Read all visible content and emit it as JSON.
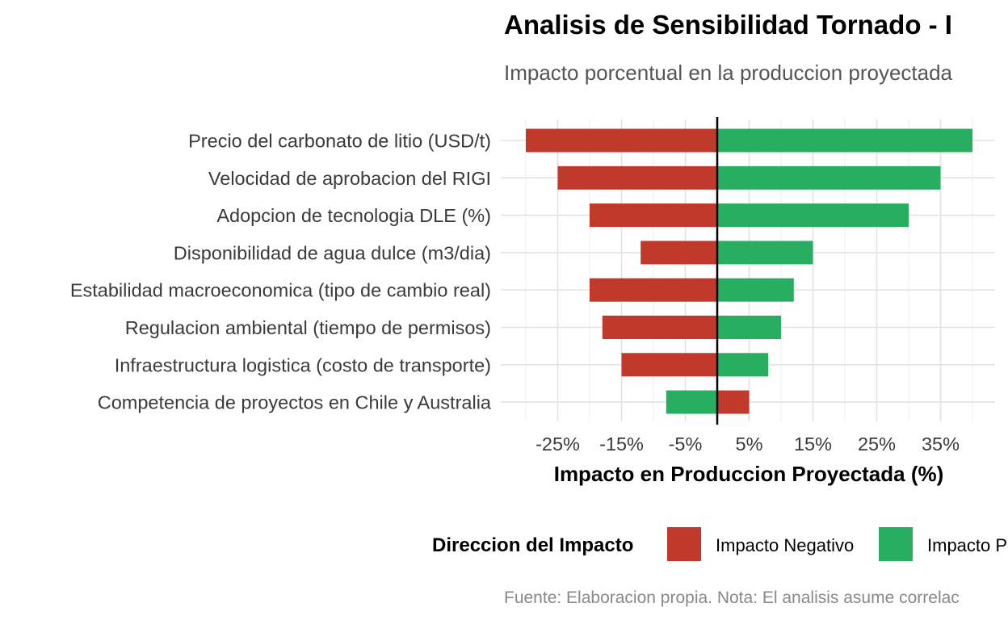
{
  "chart_data": {
    "type": "bar",
    "orientation": "horizontal",
    "variant": "tornado",
    "title": "Analisis de Sensibilidad Tornado - I",
    "subtitle": "Impacto porcentual en la produccion proyectada",
    "xlabel": "Impacto en Produccion Proyectada (%)",
    "ylabel": "",
    "caption": "Fuente: Elaboracion propia. Nota: El analisis asume correlac",
    "xlim": [
      -31,
      43
    ],
    "x_ticks": [
      -25,
      -15,
      -5,
      5,
      15,
      25,
      35
    ],
    "x_tick_labels": [
      "-25%",
      "-15%",
      "-5%",
      "5%",
      "15%",
      "25%",
      "35%"
    ],
    "grid": true,
    "legend": {
      "title": "Direccion del Impacto",
      "position": "bottom",
      "entries": [
        {
          "label": "Impacto Negativo",
          "color": "#c0392b"
        },
        {
          "label": "Impacto P",
          "color": "#27ae60"
        }
      ]
    },
    "categories": [
      "Precio del carbonato de litio (USD/t)",
      "Velocidad de aprobacion del RIGI",
      "Adopcion de tecnologia DLE (%)",
      "Disponibilidad de agua dulce (m3/dia)",
      "Estabilidad macroeconomica (tipo de cambio real)",
      "Regulacion ambiental (tiempo de permisos)",
      "Infraestructura logistica (costo de transporte)",
      "Competencia de proyectos en Chile y Australia"
    ],
    "series": [
      {
        "name": "Impacto Negativo",
        "color": "#c0392b",
        "values": [
          -30,
          -25,
          -20,
          -12,
          -20,
          -18,
          -15,
          5
        ]
      },
      {
        "name": "Impacto P",
        "color": "#27ae60",
        "values": [
          40,
          35,
          30,
          15,
          12,
          10,
          8,
          -8
        ]
      }
    ]
  }
}
